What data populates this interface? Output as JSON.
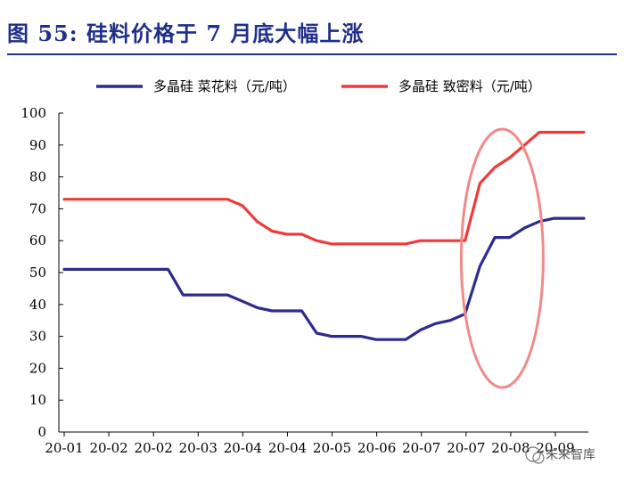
{
  "header": {
    "title": "图 55: 硅料价格于 7 月底大幅上涨"
  },
  "watermark": {
    "text": "未来智库"
  },
  "colors": {
    "title": "#1f2f8a",
    "series_blue": "#2e2a8f",
    "series_red": "#f03a3a",
    "highlight_ellipse": "#f08a8a"
  },
  "chart_data": {
    "type": "line",
    "title": "",
    "xlabel": "",
    "ylabel": "",
    "ylim": [
      0,
      100
    ],
    "yticks": [
      0,
      10,
      20,
      30,
      40,
      50,
      60,
      70,
      80,
      90,
      100
    ],
    "xtick_labels": [
      "20-01",
      "20-02",
      "20-02",
      "20-03",
      "20-04",
      "20-04",
      "20-05",
      "20-06",
      "20-07",
      "20-07",
      "20-08",
      "20-09"
    ],
    "legend_position": "top",
    "grid": false,
    "series": [
      {
        "name": "多晶硅 菜花料（元/吨）",
        "color": "#2e2a8f",
        "values": [
          51,
          51,
          51,
          51,
          51,
          51,
          51,
          51,
          43,
          43,
          43,
          43,
          41,
          39,
          38,
          38,
          38,
          31,
          30,
          30,
          30,
          29,
          29,
          29,
          32,
          34,
          35,
          37,
          52,
          61,
          61,
          64,
          66,
          67,
          67,
          67
        ]
      },
      {
        "name": "多晶硅 致密料（元/吨）",
        "color": "#f03a3a",
        "values": [
          73,
          73,
          73,
          73,
          73,
          73,
          73,
          73,
          73,
          73,
          73,
          73,
          71,
          66,
          63,
          62,
          62,
          60,
          59,
          59,
          59,
          59,
          59,
          59,
          60,
          60,
          60,
          60,
          78,
          83,
          86,
          90,
          94,
          94,
          94,
          94
        ]
      }
    ],
    "annotations": [
      {
        "type": "ellipse",
        "label": "",
        "x_index_range": [
          27,
          32
        ]
      }
    ]
  }
}
